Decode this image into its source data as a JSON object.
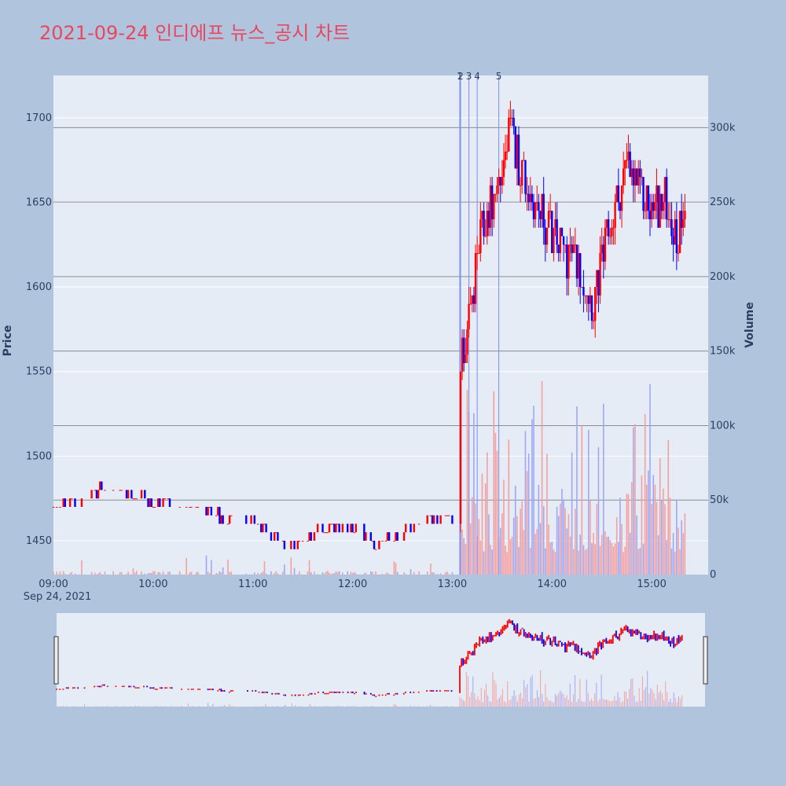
{
  "title": "2021-09-24 인디에프 뉴스_공시 차트",
  "chart_data": {
    "type": "candlestick",
    "title": "2021-09-24 인디에프 뉴스_공시 차트",
    "ylabel": "Price",
    "y2label": "Volume",
    "ylim": [
      1430,
      1725
    ],
    "y2lim": [
      0,
      335000
    ],
    "price_ticks": [
      1450,
      1500,
      1550,
      1600,
      1650,
      1700
    ],
    "volume_ticks": [
      0,
      50000,
      100000,
      150000,
      200000,
      250000,
      300000
    ],
    "volume_tick_labels": [
      "0",
      "50k",
      "100k",
      "150k",
      "200k",
      "250k",
      "300k"
    ],
    "x_ticks": [
      "09:00",
      "10:00",
      "11:00",
      "12:00",
      "13:00",
      "14:00",
      "15:00"
    ],
    "x_date_label": "Sep 24, 2021",
    "up_color": "#ff0000",
    "down_color": "#0000ff",
    "events": [
      {
        "label": "1",
        "time": "13:05"
      },
      {
        "label": "2",
        "time": "13:05"
      },
      {
        "label": "3",
        "time": "13:10"
      },
      {
        "label": "4",
        "time": "13:15"
      },
      {
        "label": "5",
        "time": "13:28"
      }
    ],
    "key_points": [
      {
        "time": "09:00",
        "close": 1470
      },
      {
        "time": "09:30",
        "close": 1480
      },
      {
        "time": "10:00",
        "close": 1472
      },
      {
        "time": "10:30",
        "close": 1468
      },
      {
        "time": "11:00",
        "close": 1460
      },
      {
        "time": "11:20",
        "close": 1450
      },
      {
        "time": "11:40",
        "close": 1455
      },
      {
        "time": "12:00",
        "close": 1458
      },
      {
        "time": "12:15",
        "close": 1448
      },
      {
        "time": "12:30",
        "close": 1458
      },
      {
        "time": "12:50",
        "close": 1465
      },
      {
        "time": "13:03",
        "close": 1462
      },
      {
        "time": "13:05",
        "close": 1560
      },
      {
        "time": "13:10",
        "close": 1575
      },
      {
        "time": "13:15",
        "close": 1620
      },
      {
        "time": "13:20",
        "close": 1640
      },
      {
        "time": "13:28",
        "close": 1660
      },
      {
        "time": "13:35",
        "close": 1690
      },
      {
        "time": "13:45",
        "close": 1660
      },
      {
        "time": "14:00",
        "close": 1630
      },
      {
        "time": "14:15",
        "close": 1615
      },
      {
        "time": "14:25",
        "close": 1590
      },
      {
        "time": "14:35",
        "close": 1635
      },
      {
        "time": "14:45",
        "close": 1670
      },
      {
        "time": "15:00",
        "close": 1645
      },
      {
        "time": "15:10",
        "close": 1650
      },
      {
        "time": "15:15",
        "close": 1625
      },
      {
        "time": "15:20",
        "close": 1655
      }
    ]
  }
}
